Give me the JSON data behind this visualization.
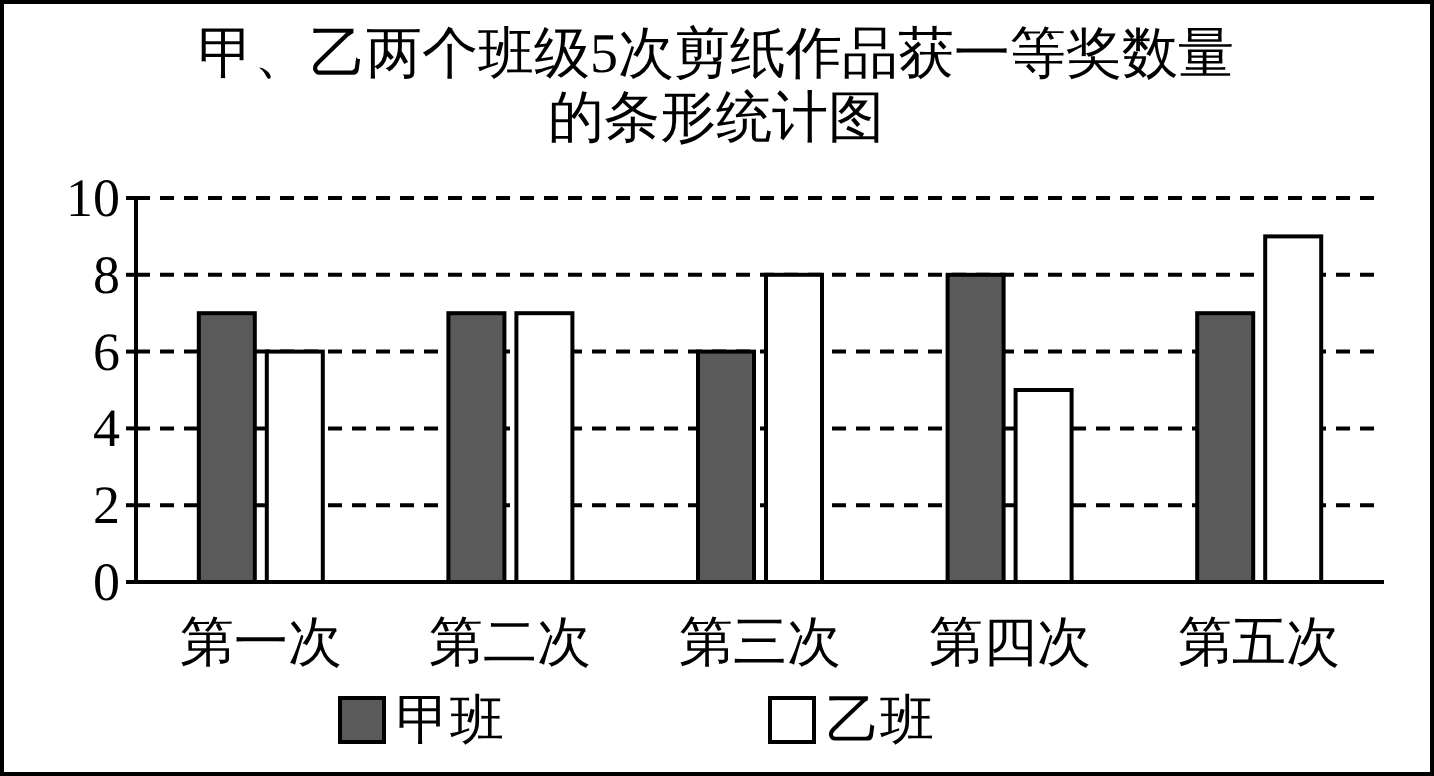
{
  "chart_data": {
    "type": "bar",
    "title": "甲、乙两个班级5次剪纸作品获一等奖数量的条形统计图",
    "categories": [
      "第一次",
      "第二次",
      "第三次",
      "第四次",
      "第五次"
    ],
    "series": [
      {
        "name": "甲班",
        "color": "#5a5a5a",
        "values": [
          7,
          7,
          6,
          8,
          7
        ]
      },
      {
        "name": "乙班",
        "color": "#ffffff",
        "values": [
          6,
          7,
          8,
          5,
          9
        ]
      }
    ],
    "ylim": [
      0,
      10
    ],
    "yticks": [
      0,
      2,
      4,
      6,
      8,
      10
    ],
    "grid": "y",
    "legend": "bottom"
  }
}
